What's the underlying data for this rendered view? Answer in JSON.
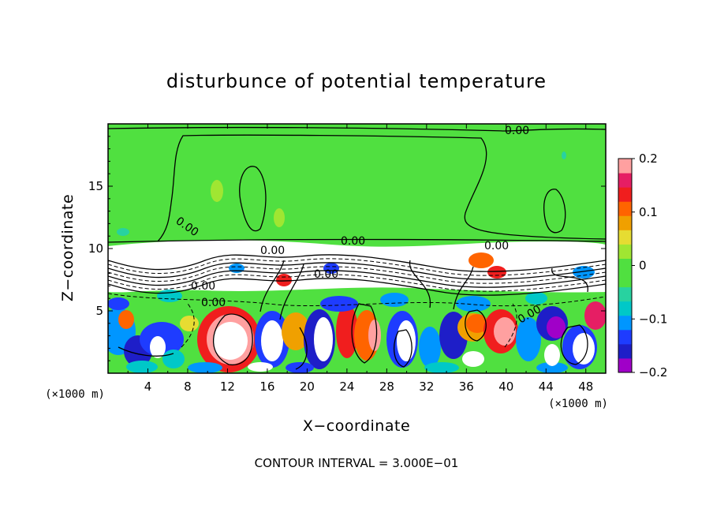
{
  "chart_data": {
    "type": "heatmap",
    "title": "disturbunce of potential temperature",
    "xlabel": "X−coordinate",
    "ylabel": "Z−coordinate",
    "x_unit_left": "(×1000 m)",
    "x_unit_right": "(×1000 m)",
    "xlim": [
      0,
      50
    ],
    "ylim": [
      0,
      20
    ],
    "xticks": [
      4,
      8,
      12,
      16,
      20,
      24,
      28,
      32,
      36,
      40,
      44,
      48
    ],
    "yticks": [
      5,
      10,
      15
    ],
    "colorbar": {
      "range": [
        -0.2,
        0.2
      ],
      "tick_labels": [
        "0.2",
        "0.1",
        "0",
        "−0.1",
        "−0.2"
      ],
      "tick_values": [
        0.2,
        0.1,
        0,
        -0.1,
        -0.2
      ],
      "colors": [
        "#a000c8",
        "#1e1ec8",
        "#1e3cff",
        "#0096ff",
        "#00c8c8",
        "#28d2a0",
        "#50e040",
        "#50e040",
        "#a0e632",
        "#e6dc32",
        "#f0a000",
        "#ff6400",
        "#f01e1e",
        "#e61e64",
        "#ffa0a0"
      ]
    },
    "contour_labels": [
      "0.00",
      "0.00",
      "0.00",
      "0.00",
      "0.00",
      "0.00",
      "0.00",
      "0.00",
      "0.00"
    ],
    "contour_interval_text": "CONTOUR INTERVAL = 3.000E−01"
  }
}
